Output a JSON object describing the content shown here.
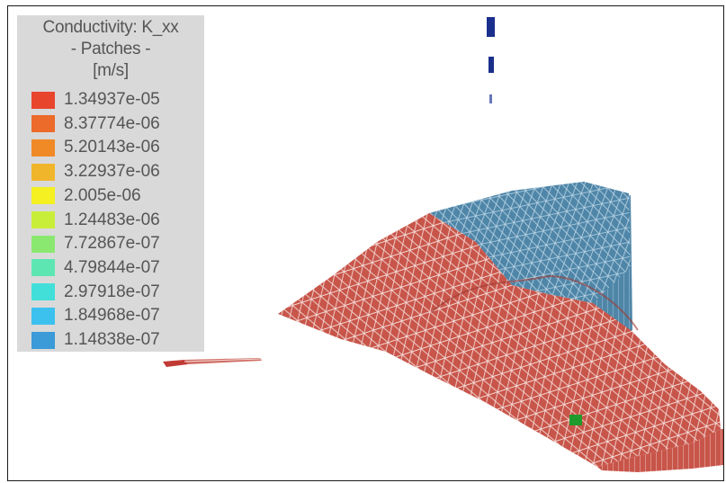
{
  "legend": {
    "title_line1": "Conductivity: K_xx",
    "title_line2": "- Patches -",
    "units": "[m/s]",
    "entries": [
      {
        "label": "1.34937e-05",
        "color": "#e8452d"
      },
      {
        "label": "8.37774e-06",
        "color": "#ec6a2a"
      },
      {
        "label": "5.20143e-06",
        "color": "#f08a26"
      },
      {
        "label": "3.22937e-06",
        "color": "#f1b52c"
      },
      {
        "label": "2.005e-06",
        "color": "#f4f022"
      },
      {
        "label": "1.24483e-06",
        "color": "#c9ee3a"
      },
      {
        "label": "7.72867e-07",
        "color": "#8ae870"
      },
      {
        "label": "4.79844e-07",
        "color": "#5ee6b2"
      },
      {
        "label": "2.97918e-07",
        "color": "#42dfd9"
      },
      {
        "label": "1.84968e-07",
        "color": "#3cc0ee"
      },
      {
        "label": "1.14838e-07",
        "color": "#3b9ad8"
      }
    ]
  },
  "colors": {
    "patch_red": "#c8554a",
    "patch_blue": "#4f86a8",
    "mesh_line": "#f3d9d4",
    "marker_green": "#1f9a2c",
    "marker_blue": "#1a2f8c"
  }
}
